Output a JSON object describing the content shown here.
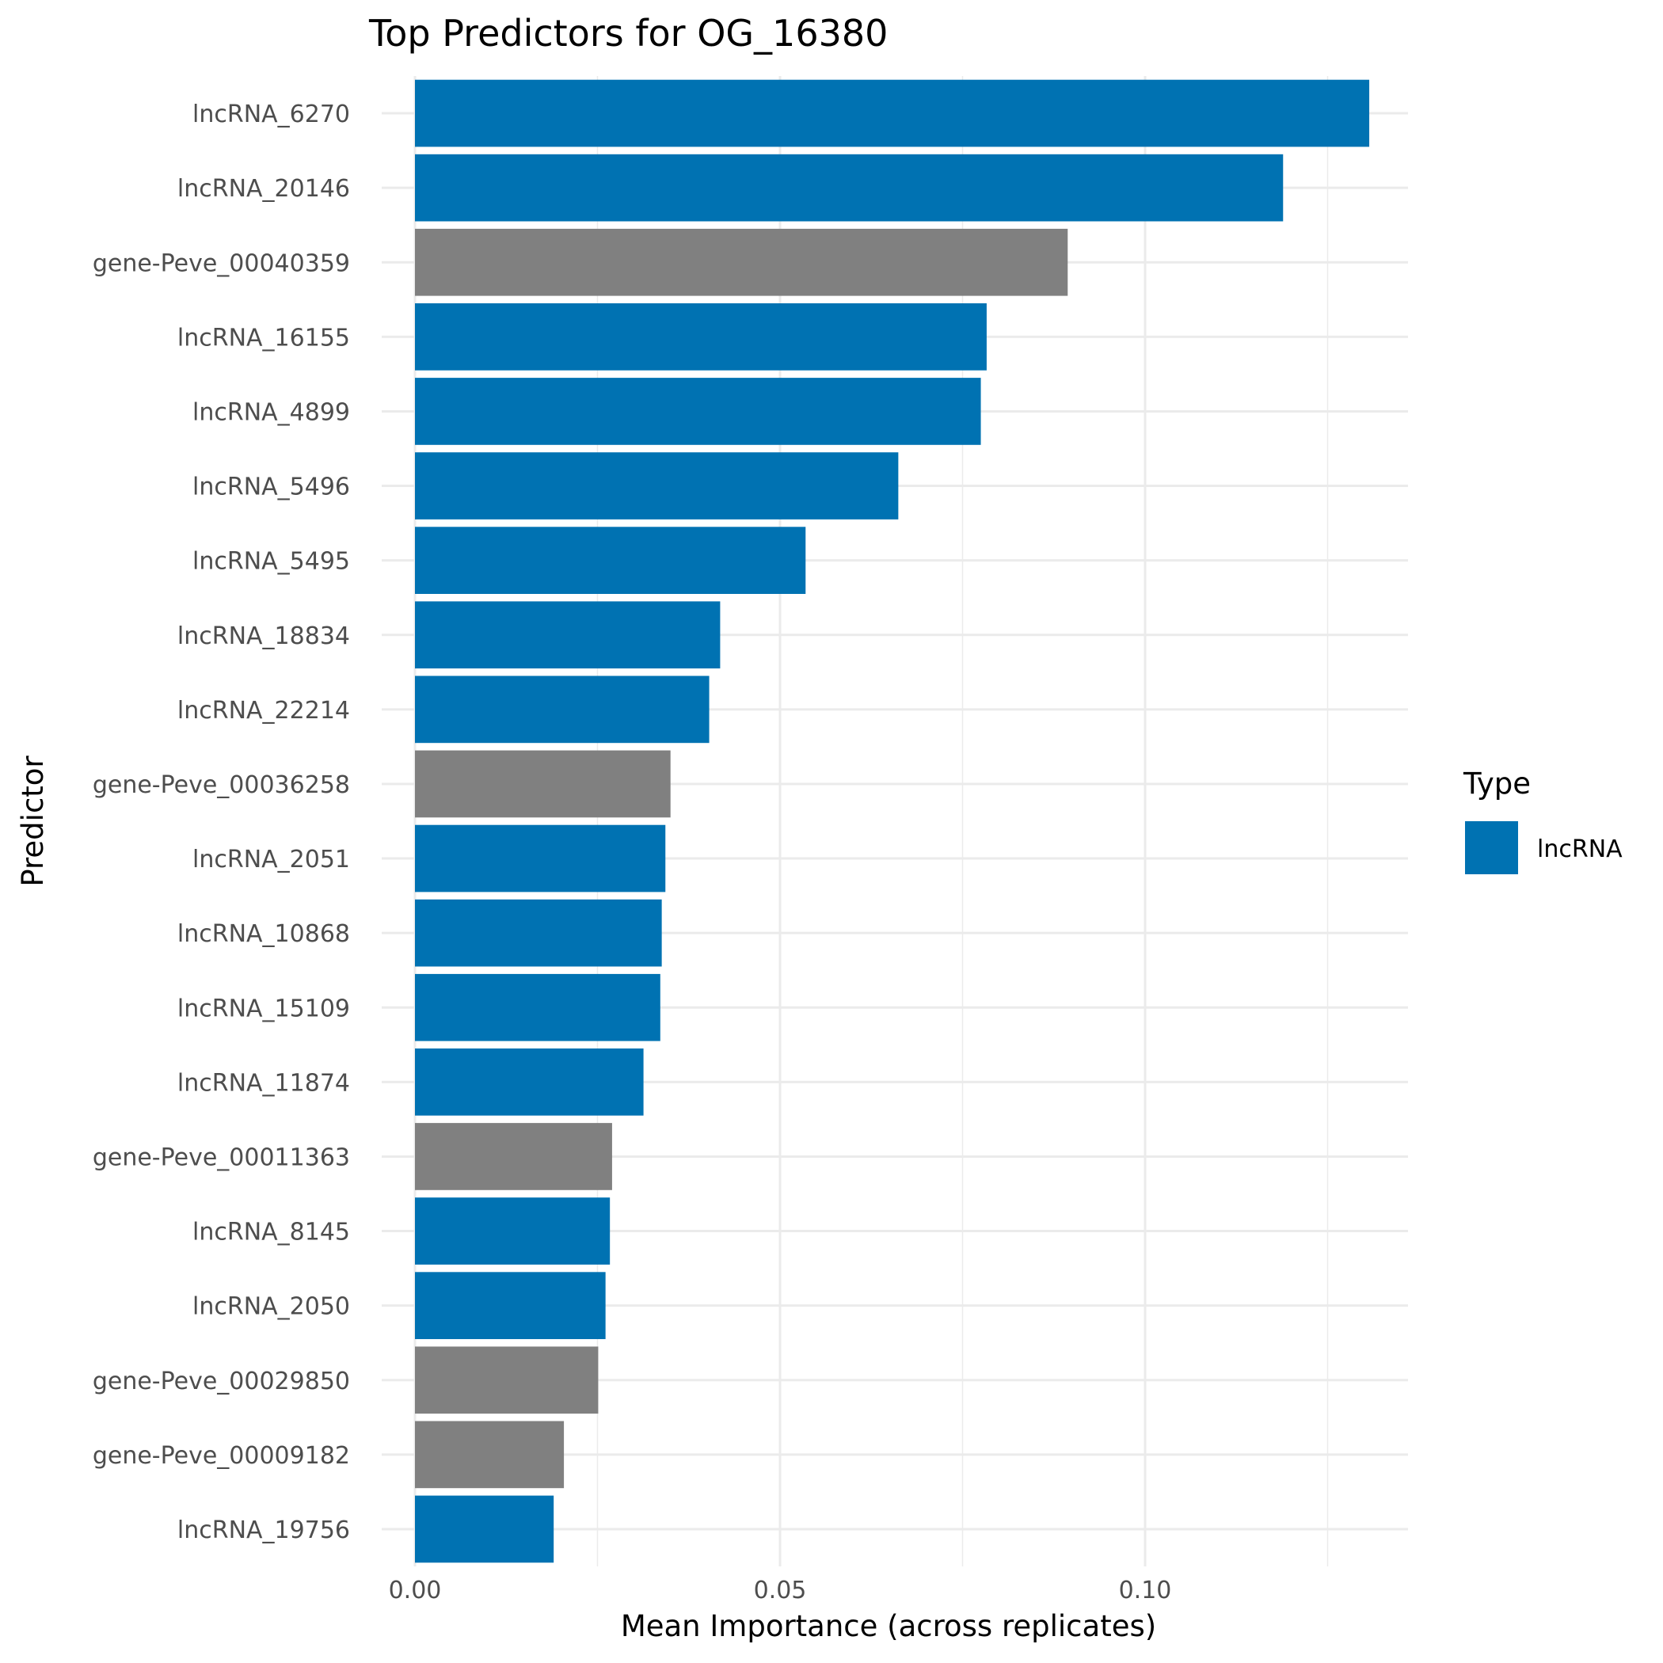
{
  "chart_data": {
    "type": "bar",
    "orientation": "horizontal",
    "title": "Top Predictors for OG_16380",
    "xlabel": "Mean Importance (across replicates)",
    "ylabel": "Predictor",
    "xlim": [
      0,
      0.137
    ],
    "x_ticks": [
      {
        "value": 0.0,
        "label": "0.00"
      },
      {
        "value": 0.05,
        "label": "0.05"
      },
      {
        "value": 0.1,
        "label": "0.10"
      }
    ],
    "grid": true,
    "categories": [
      "lncRNA_6270",
      "lncRNA_20146",
      "gene-Peve_00040359",
      "lncRNA_16155",
      "lncRNA_4899",
      "lncRNA_5496",
      "lncRNA_5495",
      "lncRNA_18834",
      "lncRNA_22214",
      "gene-Peve_00036258",
      "lncRNA_2051",
      "lncRNA_10868",
      "lncRNA_15109",
      "lncRNA_11874",
      "gene-Peve_00011363",
      "lncRNA_8145",
      "lncRNA_2050",
      "gene-Peve_00029850",
      "gene-Peve_00009182",
      "lncRNA_19756"
    ],
    "values": [
      0.1307,
      0.1189,
      0.0894,
      0.0783,
      0.0775,
      0.0662,
      0.0535,
      0.0418,
      0.0403,
      0.035,
      0.0343,
      0.0338,
      0.0336,
      0.0313,
      0.027,
      0.0267,
      0.0261,
      0.0251,
      0.0204,
      0.019
    ],
    "types": [
      "lncRNA",
      "lncRNA",
      "gene",
      "lncRNA",
      "lncRNA",
      "lncRNA",
      "lncRNA",
      "lncRNA",
      "lncRNA",
      "gene",
      "lncRNA",
      "lncRNA",
      "lncRNA",
      "lncRNA",
      "gene",
      "lncRNA",
      "lncRNA",
      "gene",
      "gene",
      "lncRNA"
    ],
    "colors": {
      "lncRNA": "#0072B2",
      "gene": "#808080"
    },
    "legend": {
      "title": "Type",
      "placement": "right",
      "entries": [
        {
          "label": "lncRNA",
          "color": "#0072B2"
        }
      ]
    }
  }
}
